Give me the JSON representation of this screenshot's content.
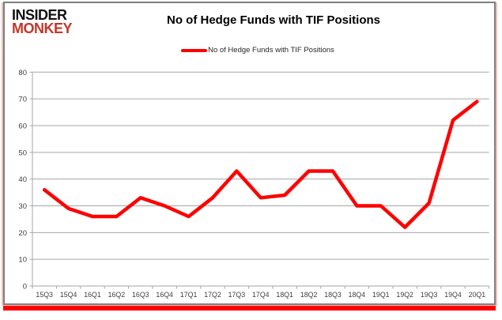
{
  "brand": {
    "line1": "INSIDER",
    "line2": "MONKEY"
  },
  "title": "No of Hedge Funds with TIF Positions",
  "legend": {
    "label": "No of Hedge Funds with TIF Positions"
  },
  "colors": {
    "line": "#fe0000",
    "grid": "#a6a6a6",
    "axis_text": "#3f3f3f",
    "brand_black": "#111111",
    "brand_red": "#c0392b",
    "frame_border": "#7f7f7f",
    "bottom_shadow": "#fe0000"
  },
  "chart_data": {
    "type": "line",
    "title": "No of Hedge Funds with TIF Positions",
    "categories": [
      "15Q3",
      "15Q4",
      "16Q1",
      "16Q2",
      "16Q3",
      "16Q4",
      "17Q1",
      "17Q2",
      "17Q3",
      "17Q4",
      "18Q1",
      "18Q2",
      "18Q3",
      "18Q4",
      "19Q1",
      "19Q2",
      "19Q3",
      "19Q4",
      "20Q1"
    ],
    "series": [
      {
        "name": "No of Hedge Funds with TIF Positions",
        "color": "#fe0000",
        "values": [
          36,
          29,
          26,
          26,
          33,
          30,
          26,
          33,
          43,
          33,
          34,
          43,
          43,
          30,
          30,
          22,
          31,
          62,
          69
        ]
      }
    ],
    "ylim": [
      0,
      80
    ],
    "yticks": [
      0,
      10,
      20,
      30,
      40,
      50,
      60,
      70,
      80
    ],
    "xlabel": "",
    "ylabel": "",
    "grid": true,
    "legend_position": "top"
  }
}
